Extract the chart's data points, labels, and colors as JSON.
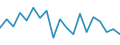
{
  "x": [
    0,
    1,
    2,
    3,
    4,
    5,
    6,
    7,
    8,
    9,
    10,
    11,
    12,
    13,
    14,
    15,
    16,
    17,
    18
  ],
  "y": [
    5.5,
    7.5,
    5.8,
    9.0,
    7.2,
    10.2,
    7.8,
    9.5,
    3.2,
    7.5,
    5.5,
    4.0,
    8.8,
    4.5,
    8.0,
    7.0,
    4.5,
    5.2,
    4.0
  ],
  "line_color": "#2b8fc0",
  "linewidth": 1.2,
  "background_color": "#ffffff",
  "ylim": [
    1.5,
    12.0
  ]
}
